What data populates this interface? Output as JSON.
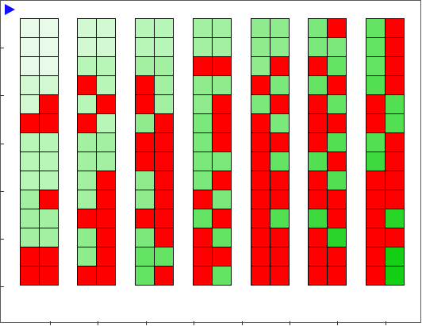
{
  "board": {
    "colors": {
      "red": "#ff0000",
      "g0": "#e8fbe8",
      "g1": "#d2f8d2",
      "g2": "#b8f5b8",
      "g3": "#a3f0a3",
      "g4": "#8eec8e",
      "g5": "#7ae87a",
      "g6": "#65e365",
      "g7": "#52df52",
      "g8": "#3ed93e",
      "g9": "#2ad52a",
      "g10": "#14cf14"
    },
    "columns": [
      {
        "rows": [
          [
            "g0",
            "g0"
          ],
          [
            "g0",
            "g0"
          ],
          [
            "g0",
            "g0"
          ],
          [
            "g1",
            "g1"
          ],
          [
            "g1",
            "red"
          ],
          [
            "red",
            "red"
          ],
          [
            "g2",
            "g2"
          ],
          [
            "g2",
            "g2"
          ],
          [
            "g2",
            "g2"
          ],
          [
            "g3",
            "red"
          ],
          [
            "g3",
            "g3"
          ],
          [
            "g3",
            "g3"
          ],
          [
            "red",
            "red"
          ],
          [
            "red",
            "red"
          ]
        ]
      },
      {
        "rows": [
          [
            "g1",
            "g1"
          ],
          [
            "g1",
            "g1"
          ],
          [
            "g2",
            "g2"
          ],
          [
            "red",
            "g2"
          ],
          [
            "g2",
            "red"
          ],
          [
            "red",
            "g2"
          ],
          [
            "g3",
            "g3"
          ],
          [
            "g3",
            "g3"
          ],
          [
            "g3",
            "red"
          ],
          [
            "g3",
            "red"
          ],
          [
            "red",
            "red"
          ],
          [
            "g4",
            "red"
          ],
          [
            "g4",
            "red"
          ],
          [
            "red",
            "red"
          ]
        ]
      },
      {
        "rows": [
          [
            "g2",
            "g2"
          ],
          [
            "g2",
            "g2"
          ],
          [
            "g3",
            "g3"
          ],
          [
            "red",
            "g3"
          ],
          [
            "red",
            "g3"
          ],
          [
            "g4",
            "red"
          ],
          [
            "red",
            "red"
          ],
          [
            "red",
            "red"
          ],
          [
            "g4",
            "red"
          ],
          [
            "g4",
            "red"
          ],
          [
            "red",
            "red"
          ],
          [
            "g5",
            "red"
          ],
          [
            "g6",
            "g6"
          ],
          [
            "g6",
            "red"
          ]
        ]
      },
      {
        "rows": [
          [
            "g3",
            "g3"
          ],
          [
            "g3",
            "g3"
          ],
          [
            "red",
            "red"
          ],
          [
            "g4",
            "g4"
          ],
          [
            "g4",
            "red"
          ],
          [
            "g5",
            "red"
          ],
          [
            "g5",
            "red"
          ],
          [
            "g5",
            "g5"
          ],
          [
            "g5",
            "red"
          ],
          [
            "red",
            "g5"
          ],
          [
            "g6",
            "red"
          ],
          [
            "red",
            "g6"
          ],
          [
            "red",
            "red"
          ],
          [
            "red",
            "g6"
          ]
        ]
      },
      {
        "rows": [
          [
            "g4",
            "g4"
          ],
          [
            "g4",
            "g4"
          ],
          [
            "g4",
            "red"
          ],
          [
            "red",
            "g5"
          ],
          [
            "g5",
            "red"
          ],
          [
            "red",
            "g5"
          ],
          [
            "red",
            "red"
          ],
          [
            "red",
            "g6"
          ],
          [
            "red",
            "red"
          ],
          [
            "red",
            "red"
          ],
          [
            "red",
            "g7"
          ],
          [
            "red",
            "red"
          ],
          [
            "red",
            "red"
          ],
          [
            "red",
            "red"
          ]
        ]
      },
      {
        "rows": [
          [
            "g5",
            "red"
          ],
          [
            "g5",
            "g5"
          ],
          [
            "red",
            "g6"
          ],
          [
            "g6",
            "red"
          ],
          [
            "red",
            "g6"
          ],
          [
            "red",
            "red"
          ],
          [
            "red",
            "g7"
          ],
          [
            "g7",
            "red"
          ],
          [
            "red",
            "g7"
          ],
          [
            "red",
            "red"
          ],
          [
            "g8",
            "red"
          ],
          [
            "red",
            "g9"
          ],
          [
            "red",
            "red"
          ],
          [
            "red",
            "red"
          ]
        ]
      },
      {
        "rows": [
          [
            "g6",
            "red"
          ],
          [
            "g6",
            "red"
          ],
          [
            "g6",
            "red"
          ],
          [
            "g7",
            "red"
          ],
          [
            "red",
            "g7"
          ],
          [
            "red",
            "g7"
          ],
          [
            "g7",
            "red"
          ],
          [
            "g8",
            "red"
          ],
          [
            "red",
            "red"
          ],
          [
            "red",
            "red"
          ],
          [
            "red",
            "g9"
          ],
          [
            "red",
            "red"
          ],
          [
            "red",
            "g10"
          ],
          [
            "red",
            "g10"
          ]
        ]
      }
    ]
  }
}
